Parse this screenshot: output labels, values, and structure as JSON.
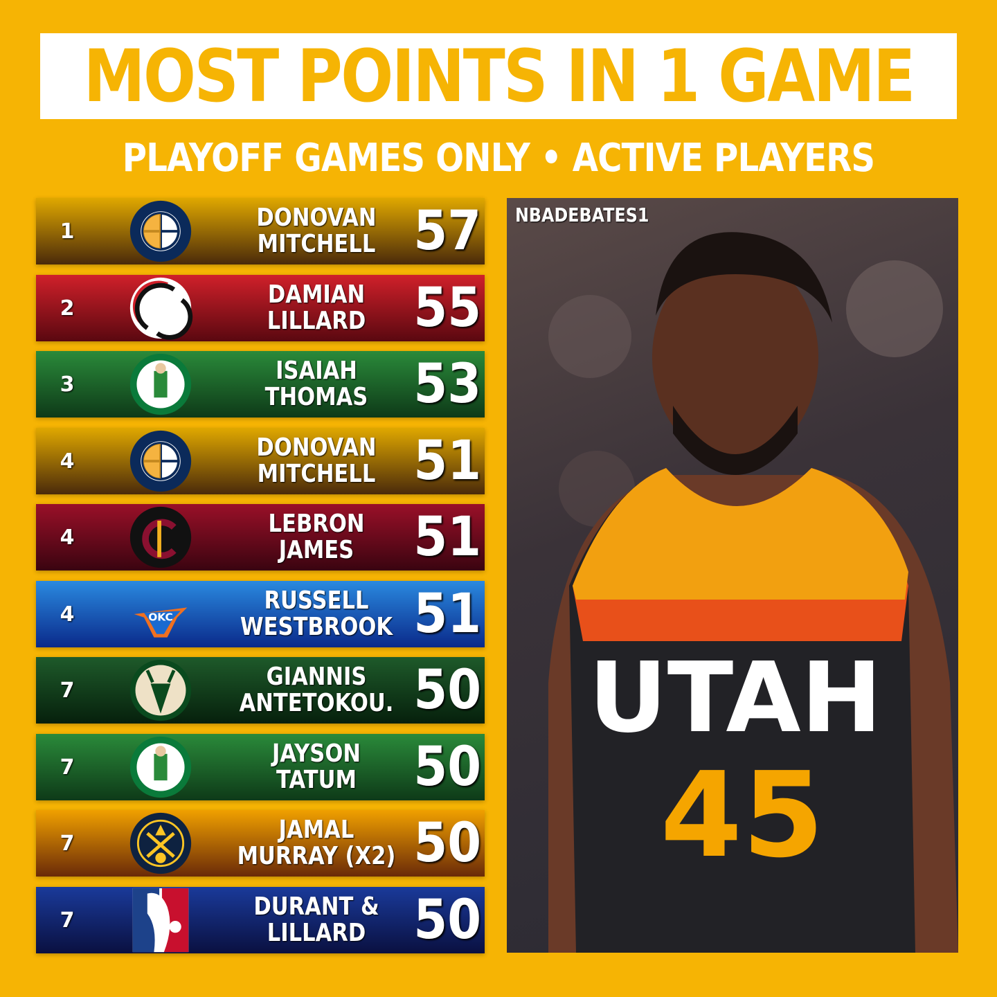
{
  "header": {
    "title": "MOST POINTS IN 1 GAME",
    "subtitle": "PLAYOFF GAMES ONLY • ACTIVE PLAYERS"
  },
  "rows": [
    {
      "rank": "1",
      "name": "DONOVAN\nMITCHELL",
      "points": "57",
      "team_logo": "utah-jazz-logo",
      "color_top": "#E0A800",
      "color_bottom": "#4a2a0a"
    },
    {
      "rank": "2",
      "name": "DAMIAN\nLILLARD",
      "points": "55",
      "team_logo": "portland-trail-blazers-logo",
      "color_top": "#d0202a",
      "color_bottom": "#5a0810"
    },
    {
      "rank": "3",
      "name": "ISAIAH\nTHOMAS",
      "points": "53",
      "team_logo": "boston-celtics-logo",
      "color_top": "#2a8a3a",
      "color_bottom": "#0e3a18"
    },
    {
      "rank": "4",
      "name": "DONOVAN\nMITCHELL",
      "points": "51",
      "team_logo": "utah-jazz-logo",
      "color_top": "#E0A800",
      "color_bottom": "#4a2a0a"
    },
    {
      "rank": "4",
      "name": "LEBRON\nJAMES",
      "points": "51",
      "team_logo": "cleveland-cavaliers-logo",
      "color_top": "#9a1028",
      "color_bottom": "#3a0410"
    },
    {
      "rank": "4",
      "name": "RUSSELL\nWESTBROOK",
      "points": "51",
      "team_logo": "okc-thunder-logo",
      "color_top": "#2a8ae0",
      "color_bottom": "#0a2a8a"
    },
    {
      "rank": "7",
      "name": "GIANNIS\nANTETOKOU.",
      "points": "50",
      "team_logo": "milwaukee-bucks-logo",
      "color_top": "#1e5a2a",
      "color_bottom": "#06200c"
    },
    {
      "rank": "7",
      "name": "JAYSON\nTATUM",
      "points": "50",
      "team_logo": "boston-celtics-logo",
      "color_top": "#2a8a3a",
      "color_bottom": "#0e3a18"
    },
    {
      "rank": "7",
      "name": "JAMAL\nMURRAY (X2)",
      "points": "50",
      "team_logo": "denver-nuggets-logo",
      "color_top": "#F0A000",
      "color_bottom": "#6a2a08"
    },
    {
      "rank": "7",
      "name": "DURANT &\nLILLARD",
      "points": "50",
      "team_logo": "nba-logo",
      "color_top": "#1a3a9a",
      "color_bottom": "#0a1040"
    }
  ],
  "photo": {
    "watermark": "NBADEBATES1",
    "jersey_text": "UTAH",
    "jersey_number": "45"
  },
  "colors": {
    "background": "#F6B404",
    "title_box": "#FFFFFF"
  }
}
